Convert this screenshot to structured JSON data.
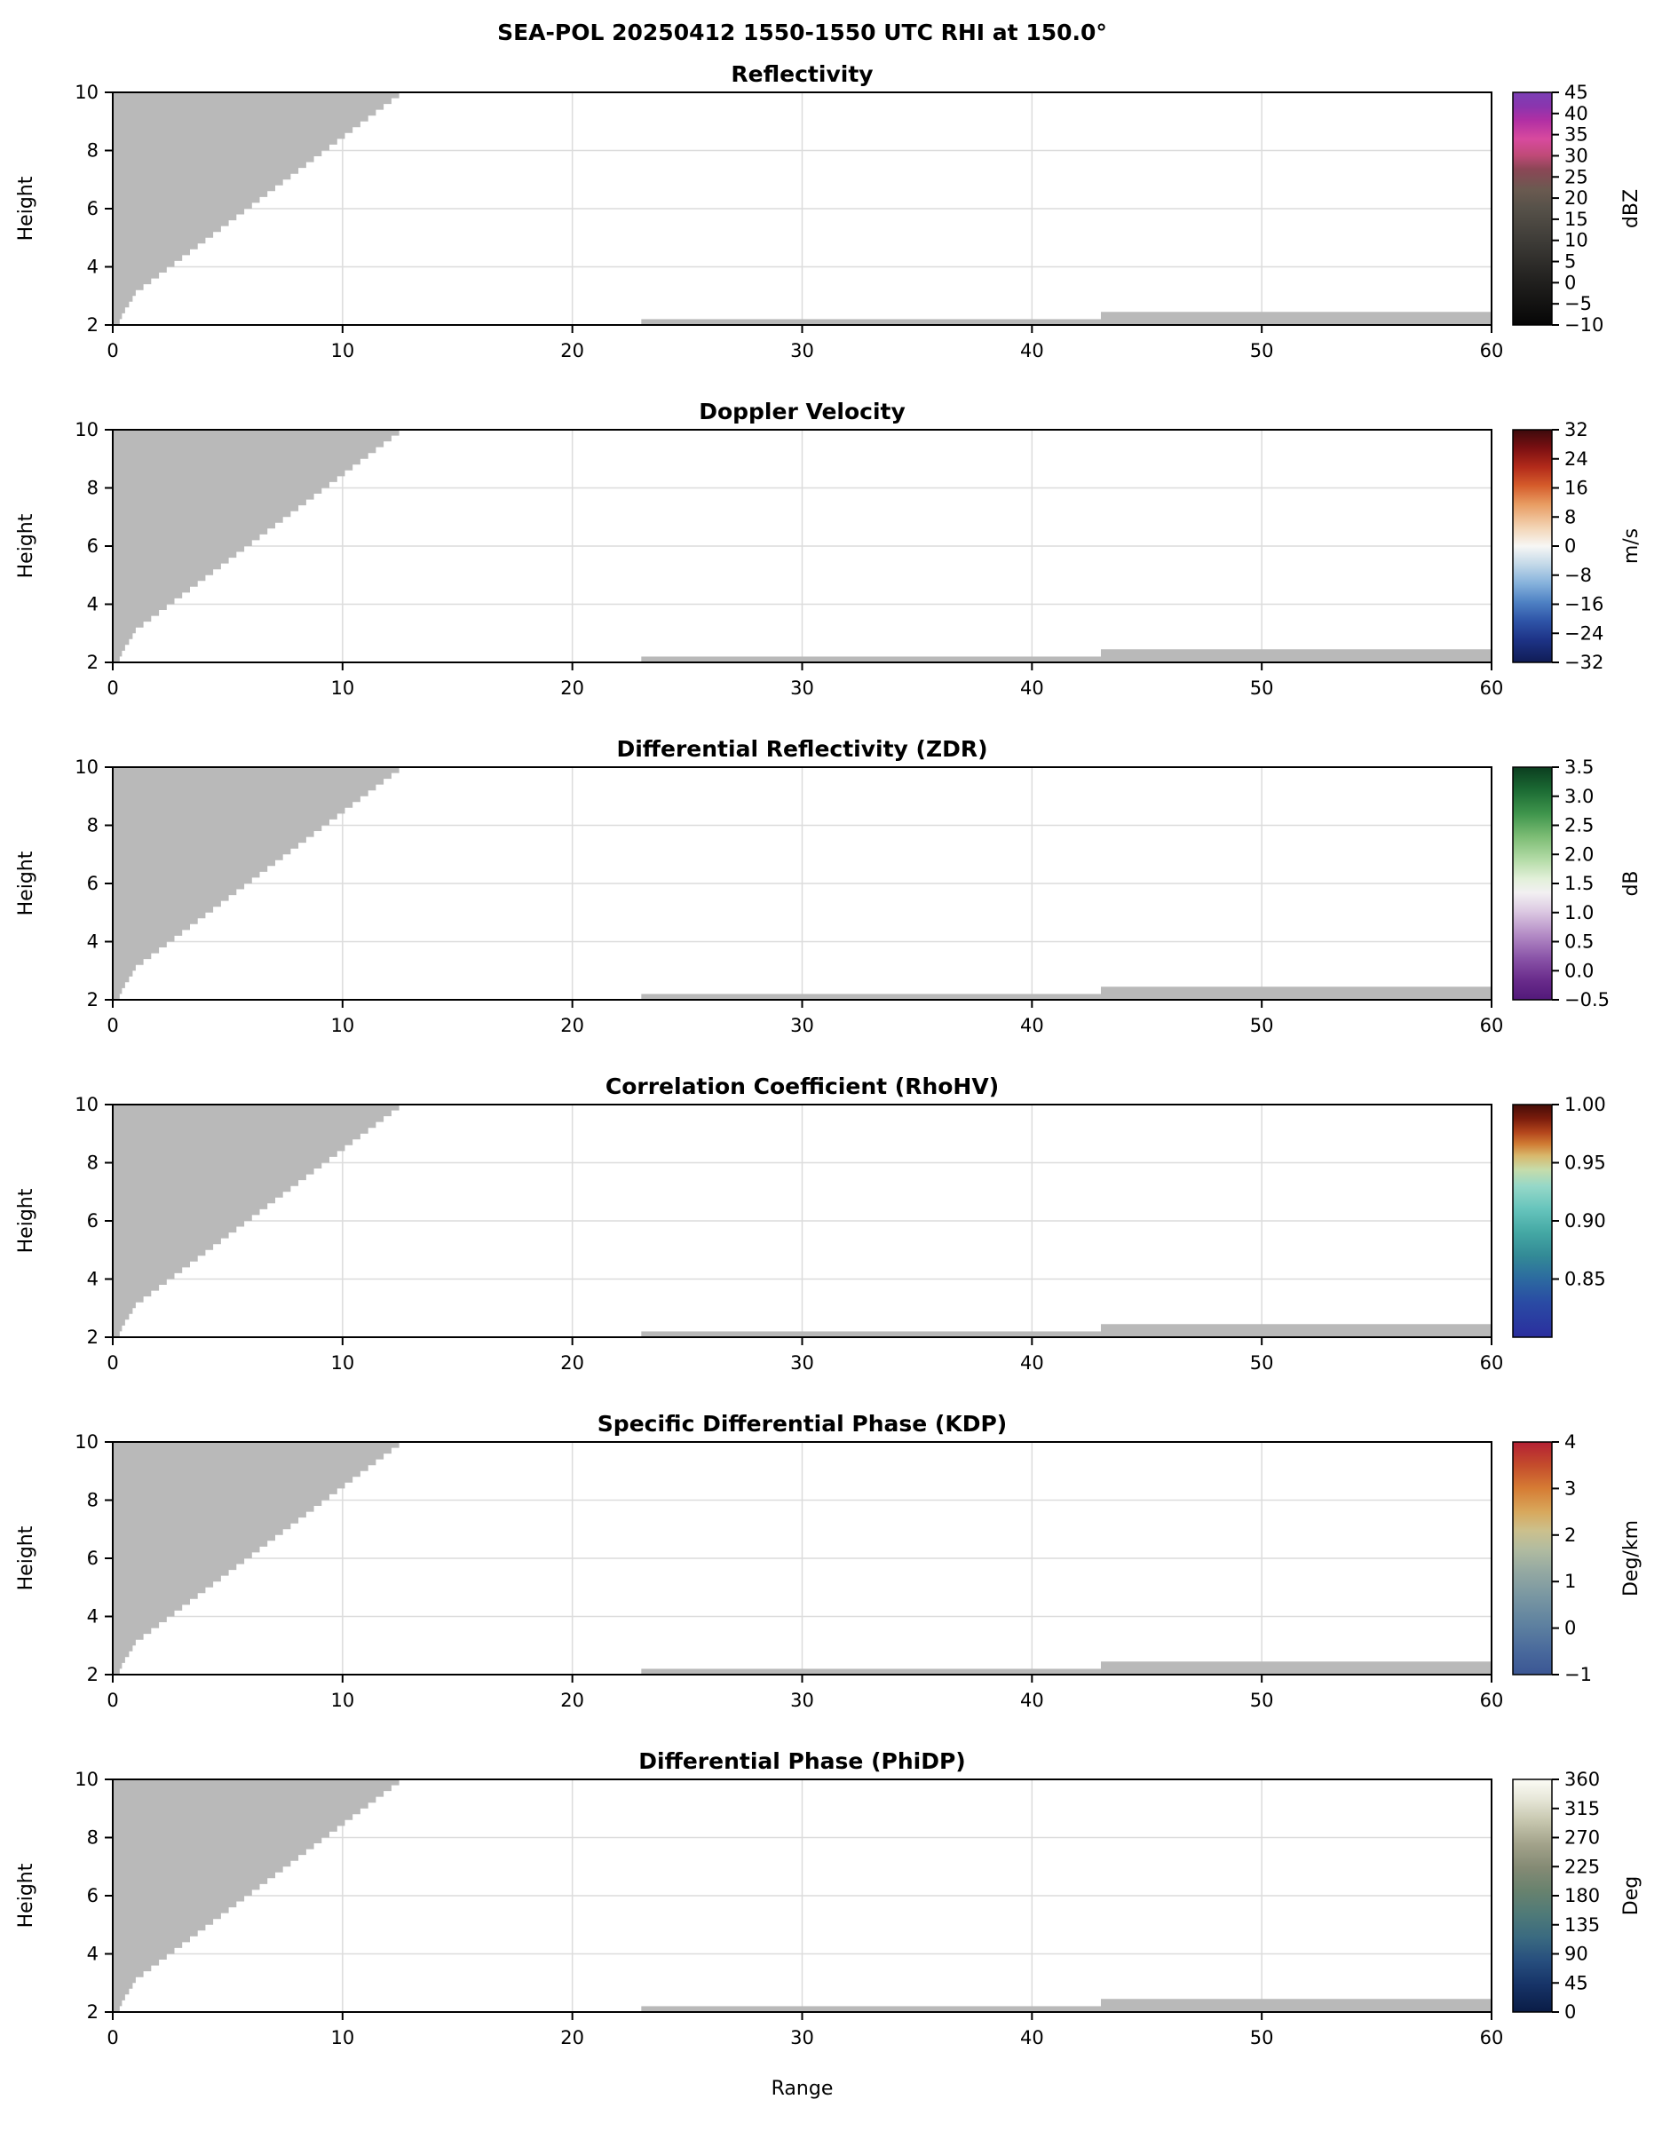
{
  "figure": {
    "suptitle": "SEA-POL 20250412 1550-1550 UTC RHI at 150.0°",
    "xlabel": "Range",
    "ylabel": "Height"
  },
  "chart_data": {
    "type": "heatmap",
    "description": "Six stacked RHI radar cross-section panels sharing identical axes; all bins are masked/no-data gray regions (a beam-blockage wedge near the radar and low-level strips at far range).",
    "layout": {
      "x_range": [
        0,
        60
      ],
      "y_range": [
        2,
        10
      ],
      "x_ticks": [
        0,
        10,
        20,
        30,
        40,
        50,
        60
      ],
      "x_tick_labels": [
        "0",
        "10",
        "20",
        "30",
        "40",
        "50",
        "60"
      ],
      "y_ticks": [
        2,
        4,
        6,
        8,
        10
      ],
      "y_tick_labels": [
        "2",
        "4",
        "6",
        "8",
        "10"
      ],
      "grid": true,
      "grid_color": "#dcdcdc",
      "frame_color": "#000000",
      "mask_color": "#b9b9b9",
      "masked_wedge_boundary": [
        [
          2,
          0.3
        ],
        [
          2.3,
          0.45
        ],
        [
          2.7,
          0.8
        ],
        [
          3,
          1.0
        ],
        [
          10,
          12.8
        ]
      ],
      "masked_strips": [
        {
          "x0": 23,
          "x1": 43,
          "y0": 2,
          "y1": 2.2
        },
        {
          "x0": 43,
          "x1": 60,
          "y0": 2,
          "y1": 2.45
        }
      ]
    },
    "panels": [
      {
        "title": "Reflectivity",
        "unit": "dBZ",
        "range": [
          -10,
          45
        ],
        "ticks": [
          {
            "v": 45,
            "label": "45"
          },
          {
            "v": 40,
            "label": "40"
          },
          {
            "v": 35,
            "label": "35"
          },
          {
            "v": 30,
            "label": "30"
          },
          {
            "v": 25,
            "label": "25"
          },
          {
            "v": 20,
            "label": "20"
          },
          {
            "v": 15,
            "label": "15"
          },
          {
            "v": 10,
            "label": "10"
          },
          {
            "v": 5,
            "label": "5"
          },
          {
            "v": 0,
            "label": "0"
          },
          {
            "v": -5,
            "label": "−5"
          },
          {
            "v": -10,
            "label": "−10"
          }
        ],
        "gradient": [
          [
            0.0,
            "#7b3fb5"
          ],
          [
            0.06,
            "#8a35ae"
          ],
          [
            0.12,
            "#b12fa4"
          ],
          [
            0.2,
            "#d84a9e"
          ],
          [
            0.27,
            "#c04a78"
          ],
          [
            0.33,
            "#8c4656"
          ],
          [
            0.42,
            "#6a5a50"
          ],
          [
            0.5,
            "#565149"
          ],
          [
            0.65,
            "#3c3a36"
          ],
          [
            0.8,
            "#232220"
          ],
          [
            1.0,
            "#060606"
          ]
        ]
      },
      {
        "title": "Doppler Velocity",
        "unit": "m/s",
        "range": [
          -32,
          32
        ],
        "ticks": [
          {
            "v": 32,
            "label": "32"
          },
          {
            "v": 24,
            "label": "24"
          },
          {
            "v": 16,
            "label": "16"
          },
          {
            "v": 8,
            "label": "8"
          },
          {
            "v": 0,
            "label": "0"
          },
          {
            "v": -8,
            "label": "−8"
          },
          {
            "v": -16,
            "label": "−16"
          },
          {
            "v": -24,
            "label": "−24"
          },
          {
            "v": -32,
            "label": "−32"
          }
        ],
        "gradient": [
          [
            0.0,
            "#3c0a0c"
          ],
          [
            0.08,
            "#7c1012"
          ],
          [
            0.16,
            "#b22a1a"
          ],
          [
            0.24,
            "#d55c2b"
          ],
          [
            0.32,
            "#e89c62"
          ],
          [
            0.42,
            "#f3d4b4"
          ],
          [
            0.5,
            "#f7f7f5"
          ],
          [
            0.58,
            "#c2d8e8"
          ],
          [
            0.66,
            "#86b2dc"
          ],
          [
            0.74,
            "#4f82c4"
          ],
          [
            0.82,
            "#2f55a8"
          ],
          [
            0.9,
            "#1e3488"
          ],
          [
            1.0,
            "#101c55"
          ]
        ]
      },
      {
        "title": "Differential Reflectivity (ZDR)",
        "unit": "dB",
        "range": [
          -0.5,
          3.5
        ],
        "ticks": [
          {
            "v": 3.5,
            "label": "3.5"
          },
          {
            "v": 3.0,
            "label": "3.0"
          },
          {
            "v": 2.5,
            "label": "2.5"
          },
          {
            "v": 2.0,
            "label": "2.0"
          },
          {
            "v": 1.5,
            "label": "1.5"
          },
          {
            "v": 1.0,
            "label": "1.0"
          },
          {
            "v": 0.5,
            "label": "0.5"
          },
          {
            "v": 0.0,
            "label": "0.0"
          },
          {
            "v": -0.5,
            "label": "−0.5"
          }
        ],
        "gradient": [
          [
            0.0,
            "#0b3d1f"
          ],
          [
            0.1,
            "#1c6b34"
          ],
          [
            0.2,
            "#3f954c"
          ],
          [
            0.3,
            "#7dbd75"
          ],
          [
            0.4,
            "#b5dca8"
          ],
          [
            0.48,
            "#e2f0d9"
          ],
          [
            0.54,
            "#f2f0f2"
          ],
          [
            0.62,
            "#dcc9e2"
          ],
          [
            0.72,
            "#b48cc6"
          ],
          [
            0.82,
            "#8a54a8"
          ],
          [
            0.92,
            "#682a8a"
          ],
          [
            1.0,
            "#53197a"
          ]
        ]
      },
      {
        "title": "Correlation Coefficient (RhoHV)",
        "unit": "",
        "range": [
          0.8,
          1.0
        ],
        "ticks": [
          {
            "v": 1.0,
            "label": "1.00"
          },
          {
            "v": 0.95,
            "label": "0.95"
          },
          {
            "v": 0.9,
            "label": "0.90"
          },
          {
            "v": 0.85,
            "label": "0.85"
          }
        ],
        "gradient": [
          [
            0.0,
            "#450d08"
          ],
          [
            0.06,
            "#7a1c0c"
          ],
          [
            0.12,
            "#b4461c"
          ],
          [
            0.17,
            "#d07c34"
          ],
          [
            0.22,
            "#d8b86c"
          ],
          [
            0.28,
            "#c6dcaa"
          ],
          [
            0.35,
            "#96d8c8"
          ],
          [
            0.45,
            "#66c4bc"
          ],
          [
            0.55,
            "#44a8a4"
          ],
          [
            0.65,
            "#338a96"
          ],
          [
            0.75,
            "#2c6aa0"
          ],
          [
            0.85,
            "#2a4ba4"
          ],
          [
            1.0,
            "#2b2e9e"
          ]
        ]
      },
      {
        "title": "Specific Differential Phase (KDP)",
        "unit": "Deg/km",
        "range": [
          -1,
          4
        ],
        "ticks": [
          {
            "v": 4,
            "label": "4"
          },
          {
            "v": 3,
            "label": "3"
          },
          {
            "v": 2,
            "label": "2"
          },
          {
            "v": 1,
            "label": "1"
          },
          {
            "v": 0,
            "label": "0"
          },
          {
            "v": -1,
            "label": "−1"
          }
        ],
        "gradient": [
          [
            0.0,
            "#b42034"
          ],
          [
            0.1,
            "#c44c2c"
          ],
          [
            0.2,
            "#d67c34"
          ],
          [
            0.3,
            "#d8a85c"
          ],
          [
            0.38,
            "#ccc08c"
          ],
          [
            0.46,
            "#b2bca0"
          ],
          [
            0.55,
            "#96aaa2"
          ],
          [
            0.65,
            "#7c99a2"
          ],
          [
            0.78,
            "#5f82a0"
          ],
          [
            0.9,
            "#49699c"
          ],
          [
            1.0,
            "#3b5694"
          ]
        ]
      },
      {
        "title": "Differential Phase (PhiDP)",
        "unit": "Deg",
        "range": [
          0,
          360
        ],
        "ticks": [
          {
            "v": 360,
            "label": "360"
          },
          {
            "v": 315,
            "label": "315"
          },
          {
            "v": 270,
            "label": "270"
          },
          {
            "v": 225,
            "label": "225"
          },
          {
            "v": 180,
            "label": "180"
          },
          {
            "v": 135,
            "label": "135"
          },
          {
            "v": 90,
            "label": "90"
          },
          {
            "v": 45,
            "label": "45"
          },
          {
            "v": 0,
            "label": "0"
          }
        ],
        "gradient": [
          [
            0.0,
            "#fbfbf5"
          ],
          [
            0.08,
            "#e8e8da"
          ],
          [
            0.18,
            "#c6c6ae"
          ],
          [
            0.28,
            "#a2a28a"
          ],
          [
            0.38,
            "#848a74"
          ],
          [
            0.48,
            "#68826e"
          ],
          [
            0.58,
            "#4f7a78"
          ],
          [
            0.68,
            "#3a6a80"
          ],
          [
            0.78,
            "#274e7e"
          ],
          [
            0.88,
            "#173468"
          ],
          [
            1.0,
            "#0a1c46"
          ]
        ]
      }
    ]
  }
}
